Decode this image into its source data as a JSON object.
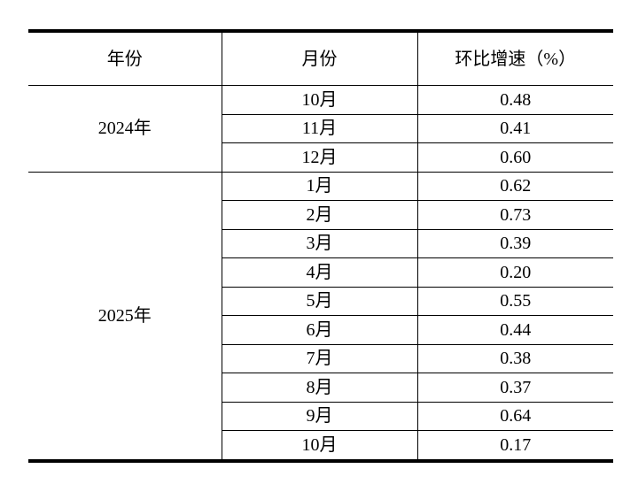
{
  "page": {
    "background": "#ffffff",
    "text_color": "#000000",
    "rule_color": "#000000"
  },
  "table": {
    "columns": [
      "年份",
      "月份",
      "环比增速（%）"
    ],
    "groups": [
      {
        "year": "2024年",
        "rows": [
          {
            "month": "10月",
            "value": "0.48"
          },
          {
            "month": "11月",
            "value": "0.41"
          },
          {
            "month": "12月",
            "value": "0.60"
          }
        ]
      },
      {
        "year": "2025年",
        "rows": [
          {
            "month": "1月",
            "value": "0.62"
          },
          {
            "month": "2月",
            "value": "0.73"
          },
          {
            "month": "3月",
            "value": "0.39"
          },
          {
            "month": "4月",
            "value": "0.20"
          },
          {
            "month": "5月",
            "value": "0.55"
          },
          {
            "month": "6月",
            "value": "0.44"
          },
          {
            "month": "7月",
            "value": "0.38"
          },
          {
            "month": "8月",
            "value": "0.37"
          },
          {
            "month": "9月",
            "value": "0.64"
          },
          {
            "month": "10月",
            "value": "0.17"
          }
        ]
      }
    ]
  }
}
